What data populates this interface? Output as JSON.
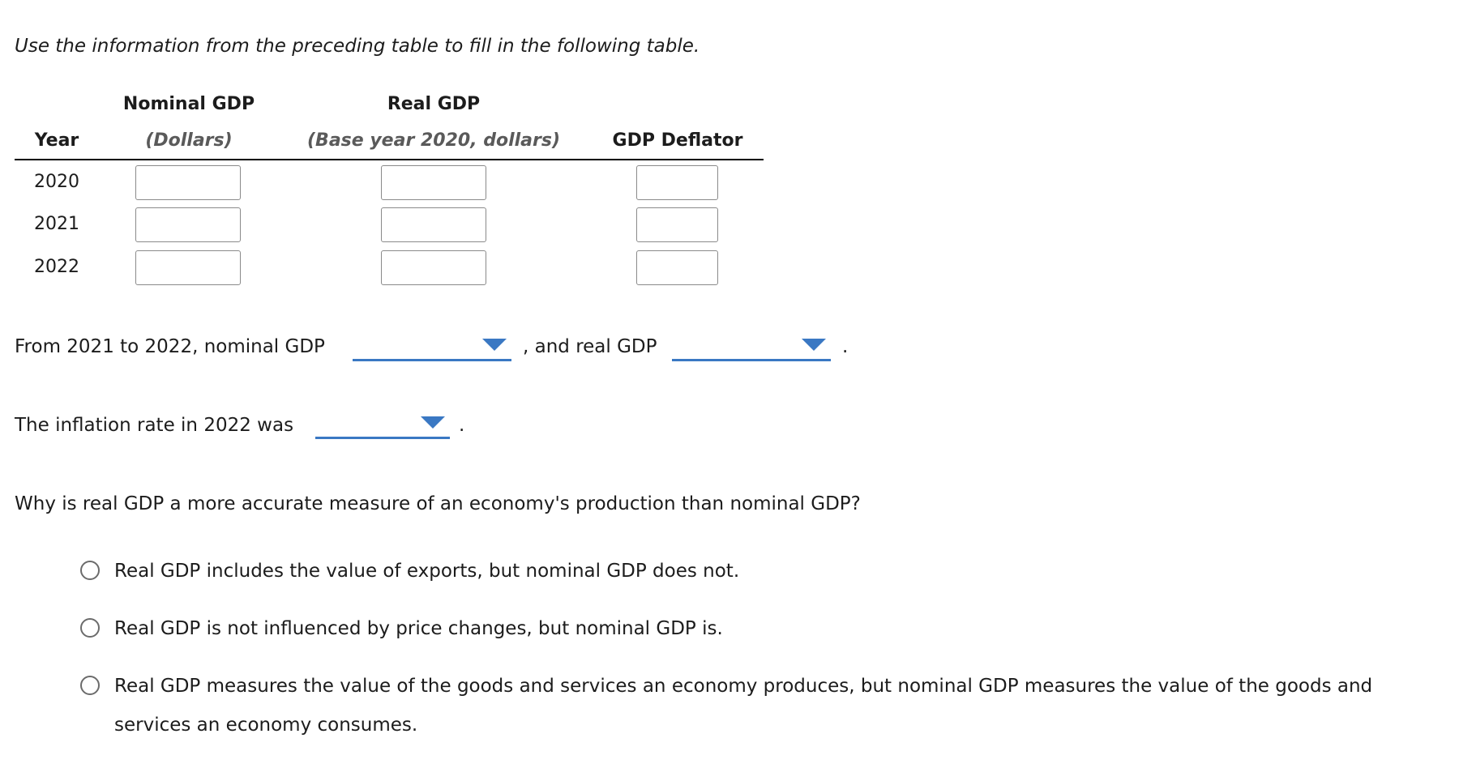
{
  "instruction": "Use the information from the preceding table to fill in the following table.",
  "table": {
    "headers": {
      "year": "Year",
      "nominal_top": "Nominal GDP",
      "nominal_sub": "(Dollars)",
      "real_top": "Real GDP",
      "real_sub": "(Base year 2020, dollars)",
      "deflator": "GDP Deflator"
    },
    "rows": [
      {
        "year": "2020",
        "nominal": "",
        "real": "",
        "deflator": ""
      },
      {
        "year": "2021",
        "nominal": "",
        "real": "",
        "deflator": ""
      },
      {
        "year": "2022",
        "nominal": "",
        "real": "",
        "deflator": ""
      }
    ]
  },
  "question1": {
    "text_before": "From 2021 to 2022, nominal GDP",
    "dropdown1_value": "",
    "text_middle": ", and real GDP",
    "dropdown2_value": "",
    "text_end": "."
  },
  "question2": {
    "text_before": "The inflation rate in 2022 was",
    "dropdown_value": "",
    "text_end": "."
  },
  "question3": {
    "prompt": "Why is real GDP a more accurate measure of an economy's production than nominal GDP?",
    "options": [
      "Real GDP includes the value of exports, but nominal GDP does not.",
      "Real GDP is not influenced by price changes, but nominal GDP is.",
      "Real GDP measures the value of the goods and services an economy produces, but nominal GDP measures the value of the goods and",
      "services an economy consumes."
    ]
  },
  "colors": {
    "accent": "#3a78c3",
    "text": "#1c1c1c",
    "italic_header": "#5a5a5a"
  }
}
